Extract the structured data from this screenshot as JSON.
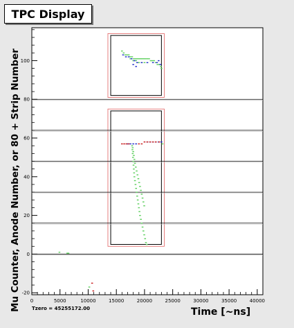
{
  "title": "TPC Display",
  "tzero_label": "Tzero = 45255172.00",
  "colors": {
    "background": "#e8e8e8",
    "axis": "#000000",
    "region_outer": "#e06060",
    "hit_green": "#5ccf5c",
    "hit_blue": "#1c2cc8",
    "hit_red": "#c81c1c"
  },
  "chart_data": {
    "type": "scatter",
    "xlabel": "Time [~ns]",
    "ylabel": "Mu Counter, Anode Number, or 80 + Strip Number",
    "xlim": [
      0,
      41000
    ],
    "ylim": [
      -21,
      117
    ],
    "x_ticks": [
      0,
      5000,
      10000,
      15000,
      20000,
      25000,
      30000,
      35000,
      40000
    ],
    "y_ticks": [
      -20,
      0,
      20,
      40,
      60,
      80,
      100
    ],
    "grid": false,
    "horizontal_lines": [
      0,
      16,
      32,
      48,
      64,
      80
    ],
    "regions": [
      {
        "x": [
          13500,
          23500
        ],
        "y": [
          81,
          114
        ],
        "kind": "outer"
      },
      {
        "x": [
          14000,
          23000
        ],
        "y": [
          82,
          113
        ],
        "kind": "inner"
      },
      {
        "x": [
          13500,
          23500
        ],
        "y": [
          4,
          75
        ],
        "kind": "outer"
      },
      {
        "x": [
          14000,
          23000
        ],
        "y": [
          5,
          74
        ],
        "kind": "inner"
      }
    ],
    "series": [
      {
        "color": "green",
        "points": [
          [
            16000,
            105
          ],
          [
            16300,
            104
          ],
          [
            16600,
            103
          ],
          [
            16900,
            103
          ],
          [
            17200,
            103
          ],
          [
            17500,
            102
          ],
          [
            17800,
            102
          ],
          [
            18100,
            101
          ],
          [
            18400,
            101
          ],
          [
            18700,
            101
          ],
          [
            19000,
            101
          ],
          [
            19300,
            101
          ],
          [
            19600,
            101
          ],
          [
            19900,
            101
          ],
          [
            20200,
            101
          ],
          [
            20500,
            101
          ],
          [
            20800,
            101
          ],
          [
            21100,
            100
          ],
          [
            21400,
            100
          ],
          [
            21700,
            100
          ],
          [
            22000,
            99
          ],
          [
            22300,
            98
          ],
          [
            22600,
            98
          ],
          [
            22900,
            97
          ],
          [
            23000,
            96
          ],
          [
            17500,
            101
          ],
          [
            18000,
            100
          ],
          [
            18500,
            100
          ],
          [
            19000,
            99
          ],
          [
            19500,
            99
          ],
          [
            20000,
            99
          ],
          [
            17800,
            56
          ],
          [
            17850,
            54
          ],
          [
            17900,
            52
          ],
          [
            17950,
            50
          ],
          [
            18000,
            48
          ],
          [
            18050,
            46
          ],
          [
            18100,
            44
          ],
          [
            18150,
            42
          ],
          [
            18200,
            40
          ],
          [
            18300,
            38
          ],
          [
            18400,
            36
          ],
          [
            18500,
            34
          ],
          [
            18600,
            32
          ],
          [
            18700,
            30
          ],
          [
            18800,
            28
          ],
          [
            18900,
            26
          ],
          [
            19000,
            24
          ],
          [
            19100,
            22
          ],
          [
            19200,
            20
          ],
          [
            19350,
            18
          ],
          [
            19500,
            16
          ],
          [
            19650,
            14
          ],
          [
            19800,
            12
          ],
          [
            19950,
            10
          ],
          [
            20100,
            8
          ],
          [
            20250,
            6
          ],
          [
            20400,
            5
          ],
          [
            17900,
            55
          ],
          [
            18000,
            53
          ],
          [
            18100,
            51
          ],
          [
            18200,
            49
          ],
          [
            18300,
            47
          ],
          [
            18450,
            45
          ],
          [
            18600,
            43
          ],
          [
            18750,
            41
          ],
          [
            18900,
            39
          ],
          [
            19050,
            37
          ],
          [
            19200,
            35
          ],
          [
            19350,
            33
          ],
          [
            19500,
            31
          ],
          [
            19650,
            29
          ],
          [
            19800,
            27
          ],
          [
            19950,
            25
          ],
          [
            23200,
            57
          ],
          [
            4900,
            1
          ],
          [
            6300,
            0.5
          ],
          [
            6500,
            0.5
          ],
          [
            10200,
            -17
          ]
        ]
      },
      {
        "color": "blue",
        "points": [
          [
            16200,
            103
          ],
          [
            16700,
            102
          ],
          [
            17200,
            102
          ],
          [
            17700,
            101
          ],
          [
            18200,
            100
          ],
          [
            18700,
            99
          ],
          [
            19500,
            99
          ],
          [
            20500,
            99
          ],
          [
            21500,
            99
          ],
          [
            22200,
            99
          ],
          [
            22500,
            100
          ],
          [
            18000,
            98
          ],
          [
            18500,
            97
          ],
          [
            22800,
            98
          ],
          [
            17000,
            57
          ],
          [
            17500,
            57
          ],
          [
            18000,
            57
          ],
          [
            18500,
            57
          ],
          [
            20500,
            58
          ],
          [
            21000,
            58
          ],
          [
            21500,
            58
          ],
          [
            22000,
            58
          ],
          [
            22500,
            58
          ],
          [
            23000,
            58
          ]
        ]
      },
      {
        "color": "red",
        "points": [
          [
            16000,
            57
          ],
          [
            16400,
            57
          ],
          [
            16800,
            57
          ],
          [
            17200,
            57
          ],
          [
            19000,
            57
          ],
          [
            19500,
            57
          ],
          [
            20000,
            58
          ],
          [
            20500,
            58
          ],
          [
            21000,
            58
          ],
          [
            21500,
            58
          ],
          [
            22000,
            58
          ],
          [
            22600,
            58
          ],
          [
            10700,
            -15
          ],
          [
            10900,
            -19
          ]
        ]
      }
    ]
  }
}
